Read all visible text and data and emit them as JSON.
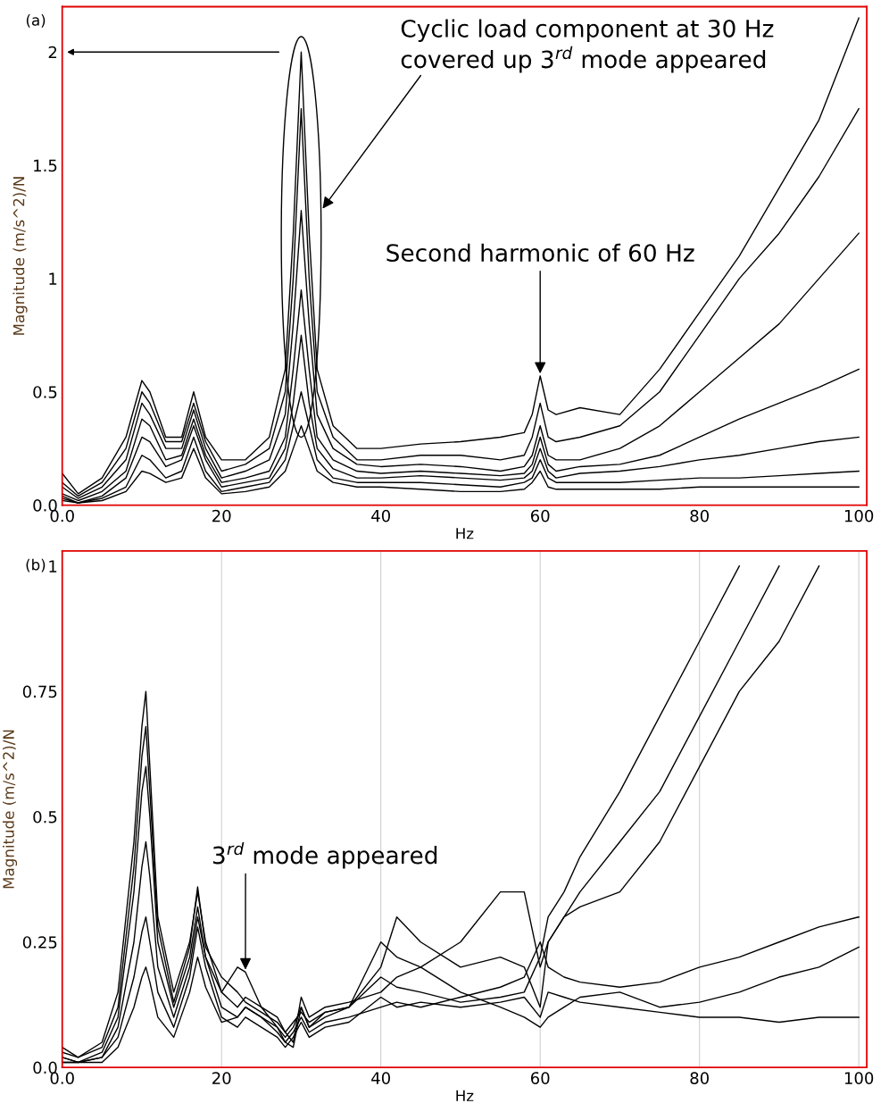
{
  "chart_data": [
    {
      "type": "line",
      "title": "(a)",
      "xlabel": "Hz",
      "ylabel": "Magnitude (m/s^2)/N",
      "x": [
        0,
        2,
        5,
        8,
        10,
        11,
        13,
        15,
        16.5,
        18,
        20,
        23,
        26,
        28,
        29,
        30,
        31,
        32,
        34,
        37,
        40,
        45,
        50,
        55,
        58,
        59,
        60,
        61,
        62,
        65,
        70,
        75,
        80,
        85,
        90,
        95,
        100
      ],
      "series": [
        {
          "color": "#000000",
          "values": [
            0.14,
            0.05,
            0.12,
            0.3,
            0.55,
            0.5,
            0.3,
            0.3,
            0.5,
            0.3,
            0.2,
            0.2,
            0.3,
            0.6,
            1.2,
            2.0,
            1.2,
            0.6,
            0.35,
            0.25,
            0.25,
            0.27,
            0.28,
            0.3,
            0.32,
            0.4,
            0.57,
            0.42,
            0.4,
            0.43,
            0.4,
            0.6,
            0.85,
            1.1,
            1.4,
            1.7,
            2.15
          ]
        },
        {
          "color": "#000000",
          "values": [
            0.1,
            0.04,
            0.1,
            0.25,
            0.5,
            0.45,
            0.28,
            0.28,
            0.45,
            0.28,
            0.15,
            0.18,
            0.25,
            0.5,
            1.0,
            1.75,
            1.0,
            0.5,
            0.3,
            0.2,
            0.2,
            0.22,
            0.22,
            0.2,
            0.22,
            0.3,
            0.45,
            0.3,
            0.28,
            0.3,
            0.35,
            0.5,
            0.75,
            1.0,
            1.2,
            1.45,
            1.75
          ]
        },
        {
          "color": "#000000",
          "values": [
            0.08,
            0.03,
            0.08,
            0.2,
            0.45,
            0.4,
            0.25,
            0.25,
            0.42,
            0.25,
            0.12,
            0.15,
            0.2,
            0.4,
            0.8,
            1.3,
            0.8,
            0.4,
            0.25,
            0.18,
            0.17,
            0.18,
            0.17,
            0.15,
            0.17,
            0.22,
            0.35,
            0.22,
            0.2,
            0.2,
            0.25,
            0.35,
            0.5,
            0.65,
            0.8,
            1.0,
            1.2
          ]
        },
        {
          "color": "#000000",
          "values": [
            0.05,
            0.02,
            0.06,
            0.15,
            0.38,
            0.35,
            0.2,
            0.22,
            0.38,
            0.22,
            0.1,
            0.12,
            0.15,
            0.3,
            0.6,
            0.95,
            0.6,
            0.3,
            0.2,
            0.15,
            0.14,
            0.15,
            0.14,
            0.13,
            0.14,
            0.18,
            0.3,
            0.18,
            0.15,
            0.17,
            0.18,
            0.22,
            0.3,
            0.38,
            0.45,
            0.52,
            0.6
          ]
        },
        {
          "color": "#000000",
          "values": [
            0.04,
            0.01,
            0.04,
            0.12,
            0.3,
            0.28,
            0.17,
            0.2,
            0.35,
            0.2,
            0.08,
            0.1,
            0.12,
            0.25,
            0.45,
            0.75,
            0.45,
            0.25,
            0.16,
            0.12,
            0.12,
            0.13,
            0.12,
            0.11,
            0.12,
            0.15,
            0.25,
            0.15,
            0.12,
            0.14,
            0.15,
            0.17,
            0.2,
            0.22,
            0.25,
            0.28,
            0.3
          ]
        },
        {
          "color": "#000000",
          "values": [
            0.03,
            0.01,
            0.03,
            0.08,
            0.22,
            0.2,
            0.12,
            0.15,
            0.3,
            0.15,
            0.06,
            0.08,
            0.1,
            0.2,
            0.35,
            0.5,
            0.35,
            0.2,
            0.12,
            0.1,
            0.1,
            0.1,
            0.09,
            0.08,
            0.1,
            0.12,
            0.2,
            0.12,
            0.1,
            0.1,
            0.1,
            0.11,
            0.12,
            0.12,
            0.13,
            0.14,
            0.15
          ]
        },
        {
          "color": "#000000",
          "values": [
            0.02,
            0.01,
            0.02,
            0.06,
            0.15,
            0.14,
            0.1,
            0.12,
            0.25,
            0.12,
            0.05,
            0.06,
            0.08,
            0.15,
            0.25,
            0.35,
            0.25,
            0.15,
            0.1,
            0.08,
            0.08,
            0.07,
            0.06,
            0.06,
            0.07,
            0.1,
            0.15,
            0.08,
            0.07,
            0.07,
            0.07,
            0.07,
            0.08,
            0.08,
            0.08,
            0.08,
            0.08
          ]
        }
      ],
      "xlim": [
        0,
        101
      ],
      "ylim": [
        0,
        2.2
      ],
      "xticks": [
        {
          "value": 0,
          "label": "0.0"
        },
        20,
        40,
        60,
        80,
        100
      ],
      "yticks": [
        {
          "value": 0,
          "label": "0.0"
        },
        0.5,
        1,
        1.5,
        2
      ],
      "grid": false,
      "marker": "none",
      "line_style": "solid",
      "annotations": [
        "Cyclic load component at 30 Hz\ncovered up 3$^{rd}$ mode appeared",
        {
          "text": "Second harmonic of 60 Hz",
          "x": 60,
          "y": 0.57
        }
      ]
    },
    {
      "type": "line",
      "title": "(b)",
      "xlabel": "Hz",
      "ylabel": "Magnitude (m/s^2)/N",
      "x": [
        0,
        2,
        5,
        7,
        9,
        10,
        10.5,
        11,
        12,
        14,
        16,
        17,
        18,
        20,
        22,
        23,
        25,
        27,
        28,
        29,
        30,
        31,
        33,
        36,
        40,
        42,
        45,
        50,
        55,
        58,
        60,
        61,
        63,
        65,
        70,
        75,
        80,
        85,
        90,
        95,
        100
      ],
      "series": [
        {
          "color": "#000000",
          "values": [
            0.04,
            0.02,
            0.05,
            0.15,
            0.45,
            0.68,
            0.75,
            0.6,
            0.3,
            0.15,
            0.25,
            0.35,
            0.25,
            0.15,
            0.12,
            0.14,
            0.12,
            0.08,
            0.06,
            0.08,
            0.12,
            0.08,
            0.1,
            0.12,
            0.2,
            0.3,
            0.25,
            0.2,
            0.22,
            0.2,
            0.12,
            0.25,
            0.3,
            0.35,
            0.45,
            0.55,
            0.7,
            0.85,
            1.0,
            null,
            null
          ]
        },
        {
          "color": "#000000",
          "values": [
            0.02,
            0.01,
            0.03,
            0.1,
            0.35,
            0.55,
            0.6,
            0.5,
            0.25,
            0.12,
            0.22,
            0.32,
            0.22,
            0.15,
            0.2,
            0.19,
            0.12,
            0.1,
            0.07,
            0.05,
            0.14,
            0.1,
            0.12,
            0.13,
            0.15,
            0.18,
            0.2,
            0.25,
            0.35,
            0.35,
            0.2,
            0.25,
            0.3,
            0.32,
            0.35,
            0.45,
            0.6,
            0.75,
            0.85,
            1.0,
            null
          ]
        },
        {
          "color": "#000000",
          "values": [
            0.03,
            0.02,
            0.04,
            0.12,
            0.4,
            0.62,
            0.68,
            0.55,
            0.28,
            0.13,
            0.24,
            0.36,
            0.24,
            0.18,
            0.15,
            0.13,
            0.11,
            0.09,
            0.07,
            0.09,
            0.11,
            0.09,
            0.11,
            0.12,
            0.18,
            0.16,
            0.15,
            0.13,
            0.14,
            0.15,
            0.22,
            0.3,
            0.35,
            0.42,
            0.55,
            0.7,
            0.85,
            1.0,
            null,
            null,
            null
          ]
        },
        {
          "color": "#000000",
          "values": [
            0.01,
            0.01,
            0.02,
            0.08,
            0.25,
            0.4,
            0.45,
            0.38,
            0.2,
            0.1,
            0.2,
            0.3,
            0.22,
            0.12,
            0.1,
            0.12,
            0.1,
            0.08,
            0.05,
            0.07,
            0.1,
            0.07,
            0.09,
            0.1,
            0.12,
            0.13,
            0.12,
            0.14,
            0.16,
            0.18,
            0.25,
            0.2,
            0.18,
            0.17,
            0.16,
            0.17,
            0.2,
            0.22,
            0.25,
            0.28,
            0.3
          ]
        },
        {
          "color": "#000000",
          "values": [
            0.02,
            0.01,
            0.02,
            0.06,
            0.18,
            0.27,
            0.3,
            0.25,
            0.15,
            0.08,
            0.18,
            0.28,
            0.2,
            0.1,
            0.08,
            0.1,
            0.08,
            0.06,
            0.04,
            0.06,
            0.09,
            0.06,
            0.08,
            0.09,
            0.14,
            0.12,
            0.13,
            0.12,
            0.13,
            0.14,
            0.1,
            0.15,
            0.14,
            0.13,
            0.12,
            0.11,
            0.1,
            0.1,
            0.09,
            0.1,
            0.1
          ]
        },
        {
          "color": "#000000",
          "values": [
            0.01,
            0.01,
            0.01,
            0.04,
            0.12,
            0.18,
            0.2,
            0.17,
            0.1,
            0.06,
            0.15,
            0.22,
            0.16,
            0.09,
            0.1,
            0.12,
            0.1,
            0.07,
            0.05,
            0.04,
            0.12,
            0.08,
            0.11,
            0.12,
            0.25,
            0.22,
            0.2,
            0.15,
            0.12,
            0.1,
            0.08,
            0.1,
            0.12,
            0.14,
            0.15,
            0.12,
            0.13,
            0.15,
            0.18,
            0.2,
            0.24
          ]
        }
      ],
      "xlim": [
        0,
        101
      ],
      "ylim": [
        0,
        1.03
      ],
      "xticks": [
        {
          "value": 0,
          "label": "0.0"
        },
        20,
        40,
        60,
        80,
        100
      ],
      "yticks": [
        {
          "value": 0,
          "label": "0.0"
        },
        0.25,
        0.5,
        0.75,
        1
      ],
      "grid": "x",
      "marker": "none",
      "line_style": "solid",
      "annotations": [
        {
          "text": "3$^{rd}$ mode appeared",
          "x": 23,
          "y": 0.19
        }
      ]
    }
  ]
}
